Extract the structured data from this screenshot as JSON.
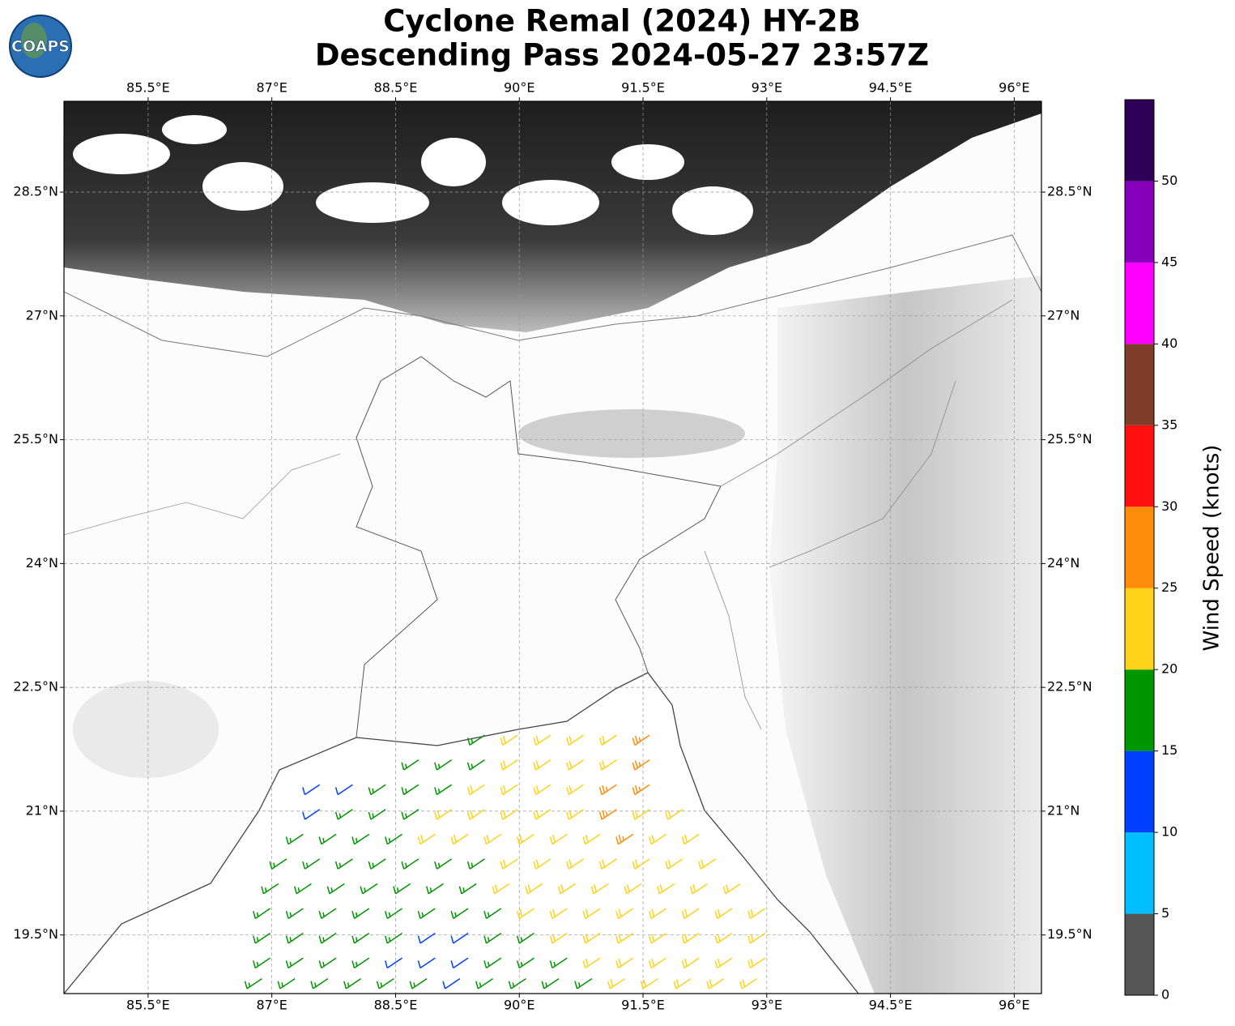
{
  "chart_data": {
    "type": "map",
    "logo": "COAPS",
    "title": [
      "Cyclone Remal (2024) HY-2B",
      "Descending Pass 2024-05-27 23:57Z"
    ],
    "xlim": [
      84.48,
      96.33
    ],
    "ylim": [
      18.79,
      29.6
    ],
    "xticks": [
      {
        "value": 85.5,
        "label": "85.5°E"
      },
      {
        "value": 87,
        "label": "87°E"
      },
      {
        "value": 88.5,
        "label": "88.5°E"
      },
      {
        "value": 90,
        "label": "90°E"
      },
      {
        "value": 91.5,
        "label": "91.5°E"
      },
      {
        "value": 93,
        "label": "93°E"
      },
      {
        "value": 94.5,
        "label": "94.5°E"
      },
      {
        "value": 96,
        "label": "96°E"
      }
    ],
    "yticks": [
      {
        "value": 19.5,
        "label": "19.5°N"
      },
      {
        "value": 21,
        "label": "21°N"
      },
      {
        "value": 22.5,
        "label": "22.5°N"
      },
      {
        "value": 24,
        "label": "24°N"
      },
      {
        "value": 25.5,
        "label": "25.5°N"
      },
      {
        "value": 27,
        "label": "27°N"
      },
      {
        "value": 28.5,
        "label": "28.5°N"
      }
    ],
    "grid": true,
    "colorbar": {
      "label": "Wind Speed (knots)",
      "bounds": [
        0,
        5,
        10,
        15,
        20,
        25,
        30,
        35,
        40,
        45,
        50,
        55
      ],
      "colors": [
        "#555555",
        "#00bfff",
        "#0040ff",
        "#009600",
        "#ffd21a",
        "#ff8c0a",
        "#ff1010",
        "#7f3c28",
        "#ff00ff",
        "#8800bb",
        "#2e0058"
      ],
      "ticks": [
        0,
        5,
        10,
        15,
        20,
        25,
        30,
        35,
        40,
        45,
        50
      ]
    },
    "barbs": [
      {
        "lat": 21.8,
        "lon": [
          89.4,
          89.8,
          90.2,
          90.6,
          91.0,
          91.4
        ],
        "speed": [
          17,
          22,
          22,
          22,
          22,
          27
        ]
      },
      {
        "lat": 21.5,
        "lon": [
          88.6,
          89.0,
          89.4,
          89.8,
          90.2,
          90.6,
          91.0,
          91.4
        ],
        "speed": [
          17,
          17,
          17,
          22,
          22,
          22,
          22,
          27
        ]
      },
      {
        "lat": 21.2,
        "lon": [
          87.4,
          87.8,
          88.2,
          88.6,
          89.0,
          89.4,
          89.8,
          90.2,
          90.6,
          91.0,
          91.4
        ],
        "speed": [
          12,
          12,
          17,
          17,
          17,
          22,
          22,
          22,
          22,
          27,
          27
        ]
      },
      {
        "lat": 20.9,
        "lon": [
          87.4,
          87.8,
          88.2,
          88.6,
          89.0,
          89.4,
          89.8,
          90.2,
          90.6,
          91.0,
          91.4,
          91.8
        ],
        "speed": [
          12,
          17,
          17,
          17,
          22,
          22,
          22,
          22,
          22,
          27,
          22,
          22
        ]
      },
      {
        "lat": 20.6,
        "lon": [
          87.2,
          87.6,
          88.0,
          88.4,
          88.8,
          89.2,
          89.6,
          90.0,
          90.4,
          90.8,
          91.2,
          91.6,
          92.0
        ],
        "speed": [
          17,
          17,
          17,
          17,
          22,
          22,
          22,
          22,
          22,
          22,
          27,
          22,
          22
        ]
      },
      {
        "lat": 20.3,
        "lon": [
          87.0,
          87.4,
          87.8,
          88.2,
          88.6,
          89.0,
          89.4,
          89.8,
          90.2,
          90.6,
          91.0,
          91.4,
          91.8,
          92.2
        ],
        "speed": [
          17,
          17,
          17,
          17,
          17,
          17,
          17,
          22,
          22,
          22,
          22,
          22,
          22,
          22
        ]
      },
      {
        "lat": 20.0,
        "lon": [
          86.9,
          87.3,
          87.7,
          88.1,
          88.5,
          88.9,
          89.3,
          89.7,
          90.1,
          90.5,
          90.9,
          91.3,
          91.7,
          92.1,
          92.5
        ],
        "speed": [
          17,
          17,
          17,
          17,
          17,
          17,
          17,
          22,
          22,
          22,
          22,
          22,
          22,
          22,
          22
        ]
      },
      {
        "lat": 19.7,
        "lon": [
          86.8,
          87.2,
          87.6,
          88.0,
          88.4,
          88.8,
          89.2,
          89.6,
          90.0,
          90.4,
          90.8,
          91.2,
          91.6,
          92.0,
          92.4,
          92.8
        ],
        "speed": [
          17,
          17,
          17,
          17,
          17,
          17,
          17,
          17,
          22,
          22,
          22,
          22,
          22,
          22,
          22,
          22
        ]
      },
      {
        "lat": 19.4,
        "lon": [
          86.8,
          87.2,
          87.6,
          88.0,
          88.4,
          88.8,
          89.2,
          89.6,
          90.0,
          90.4,
          90.8,
          91.2,
          91.6,
          92.0,
          92.4,
          92.8
        ],
        "speed": [
          17,
          17,
          17,
          17,
          17,
          12,
          12,
          17,
          17,
          22,
          22,
          22,
          22,
          22,
          22,
          22
        ]
      },
      {
        "lat": 19.1,
        "lon": [
          86.8,
          87.2,
          87.6,
          88.0,
          88.4,
          88.8,
          89.2,
          89.6,
          90.0,
          90.4,
          90.8,
          91.2,
          91.6,
          92.0,
          92.4,
          92.8
        ],
        "speed": [
          17,
          17,
          17,
          17,
          12,
          12,
          12,
          17,
          17,
          17,
          22,
          22,
          22,
          22,
          22,
          22
        ]
      },
      {
        "lat": 18.85,
        "lon": [
          86.7,
          87.1,
          87.5,
          87.9,
          88.3,
          88.7,
          89.1,
          89.5,
          89.9,
          90.3,
          90.7,
          91.1,
          91.5,
          91.9,
          92.3,
          92.7
        ],
        "speed": [
          17,
          17,
          17,
          17,
          17,
          17,
          12,
          17,
          17,
          17,
          17,
          22,
          22,
          22,
          22,
          22
        ]
      }
    ]
  }
}
